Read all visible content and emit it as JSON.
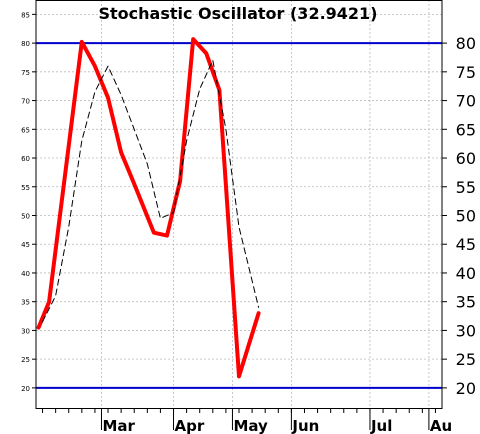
{
  "chart_data": {
    "type": "line",
    "title": "Stochastic Oscillator (32.9421)",
    "ylim": [
      16.5,
      87.5
    ],
    "grid": true,
    "y_ticks_left": [
      "20",
      "25",
      "30",
      "35",
      "40",
      "45",
      "50",
      "55",
      "60",
      "65",
      "70",
      "75",
      "80",
      "85"
    ],
    "y_ticks_right": [
      "20",
      "25",
      "30",
      "35",
      "40",
      "45",
      "50",
      "55",
      "60",
      "65",
      "70",
      "75",
      "80"
    ],
    "x_ticks": [
      "Mar",
      "Apr",
      "May",
      "Jun",
      "Jul",
      "Au"
    ],
    "x_tick_positions": [
      4.5,
      10,
      14.5,
      19,
      25,
      29.5
    ],
    "x_minor_ticks": [
      0,
      1,
      2,
      3,
      4,
      5,
      6,
      7,
      8,
      9,
      10,
      11,
      12,
      13,
      14,
      15,
      16,
      17,
      18,
      19,
      20,
      21,
      22,
      23,
      24,
      25,
      26,
      27,
      28,
      29,
      30
    ],
    "x_range": [
      -0.5,
      30.5
    ],
    "reference_lines": [
      {
        "value": 80,
        "color": "#0000cc"
      },
      {
        "value": 20,
        "color": "#0000cc"
      }
    ],
    "series": [
      {
        "color": "#ff0000",
        "style": "solid",
        "x": [
          -0.3,
          0.5,
          3,
          4,
          5,
          6,
          7,
          8.5,
          9.5,
          10.5,
          11.5,
          12.5,
          13.5,
          15,
          16.5
        ],
        "values": [
          30.5,
          35,
          80.2,
          76,
          70.5,
          61,
          55.5,
          47,
          46.5,
          56,
          80.7,
          78.2,
          71.8,
          22,
          33
        ]
      },
      {
        "color": "#000000",
        "style": "dashed",
        "x": [
          0,
          1,
          2,
          3,
          4,
          5,
          6,
          7,
          8,
          9,
          10,
          11,
          12,
          13,
          14,
          15,
          16.5
        ],
        "values": [
          31.5,
          36,
          48,
          63,
          71.5,
          76,
          71,
          65,
          59,
          49.5,
          50.5,
          63,
          72,
          77,
          65,
          48,
          34
        ]
      }
    ]
  }
}
